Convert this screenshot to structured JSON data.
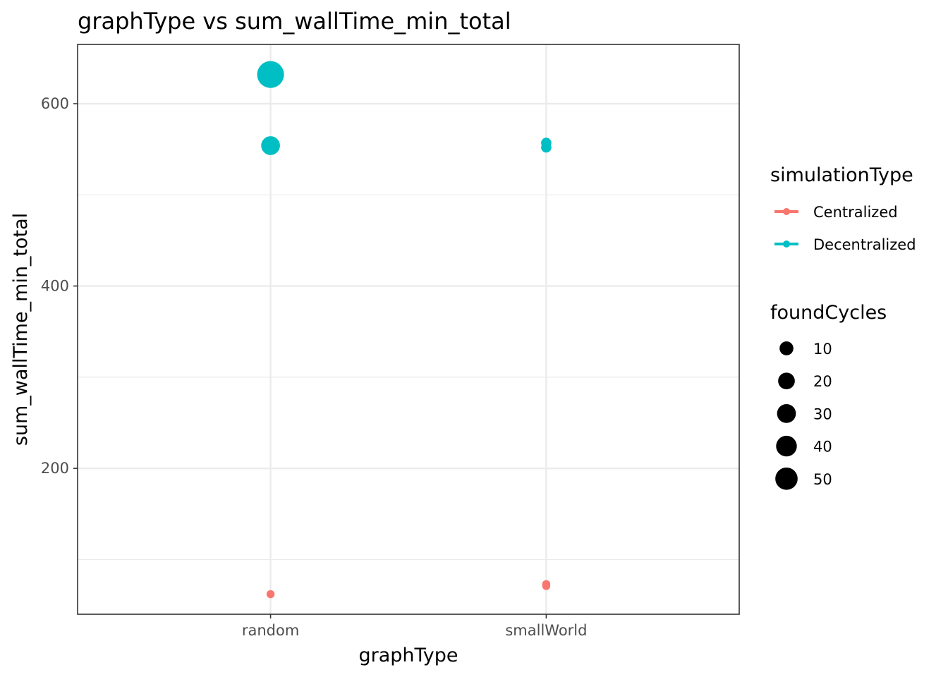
{
  "chart_data": {
    "type": "scatter",
    "title": "graphType  vs  sum_wallTime_min_total",
    "xlabel": "graphType",
    "ylabel": "sum_wallTime_min_total",
    "categories": [
      "random",
      "smallWorld"
    ],
    "ylim": [
      40,
      665
    ],
    "y_ticks": [
      200,
      400,
      600
    ],
    "y_minor_ticks": [
      100,
      300,
      500
    ],
    "grid": true,
    "series": [
      {
        "name": "Centralized",
        "color": "#F8766D",
        "points": [
          {
            "x": "random",
            "y": 62,
            "foundCycles": 1
          },
          {
            "x": "smallWorld",
            "y": 71,
            "foundCycles": 1
          },
          {
            "x": "smallWorld",
            "y": 73,
            "foundCycles": 1
          }
        ]
      },
      {
        "name": "Decentralized",
        "color": "#00BFC4",
        "points": [
          {
            "x": "random",
            "y": 632,
            "foundCycles": 50
          },
          {
            "x": "random",
            "y": 554,
            "foundCycles": 20
          },
          {
            "x": "smallWorld",
            "y": 557,
            "foundCycles": 3
          },
          {
            "x": "smallWorld",
            "y": 552,
            "foundCycles": 3
          }
        ]
      }
    ],
    "legend": {
      "placement": "right",
      "color_title": "simulationType",
      "size_title": "foundCycles",
      "size_values": [
        10,
        20,
        30,
        40,
        50
      ]
    }
  }
}
